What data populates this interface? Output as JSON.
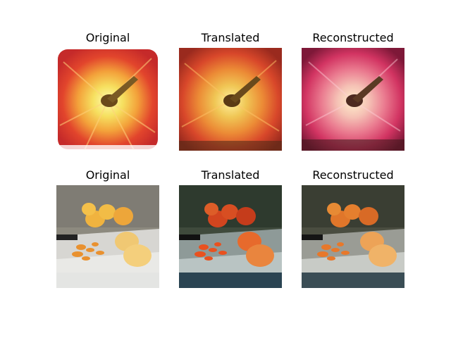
{
  "rows": [
    {
      "panels": [
        {
          "title": "Original",
          "image": "apple-closeup-original"
        },
        {
          "title": "Translated",
          "image": "apple-closeup-translated"
        },
        {
          "title": "Reconstructed",
          "image": "apple-closeup-reconstructed"
        }
      ]
    },
    {
      "panels": [
        {
          "title": "Original",
          "image": "oranges-on-cutting-board-original"
        },
        {
          "title": "Translated",
          "image": "oranges-on-cutting-board-translated"
        },
        {
          "title": "Reconstructed",
          "image": "oranges-on-cutting-board-reconstructed"
        }
      ]
    }
  ]
}
